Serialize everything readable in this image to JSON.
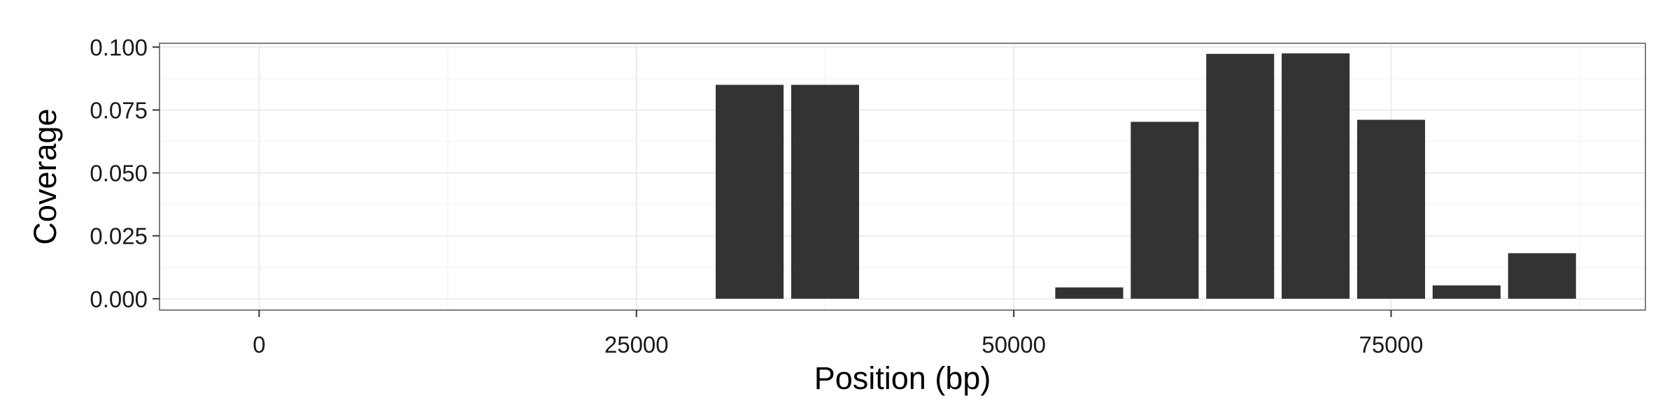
{
  "chart_data": {
    "type": "bar",
    "title": "",
    "xlabel": "Position (bp)",
    "ylabel": "Coverage",
    "xlim": [
      -6600,
      91850
    ],
    "ylim": [
      -0.0045,
      0.1015
    ],
    "x_ticks": [
      0,
      25000,
      50000,
      75000
    ],
    "x_tick_labels": [
      "0",
      "25000",
      "50000",
      "75000"
    ],
    "y_ticks": [
      0,
      0.025,
      0.05,
      0.075,
      0.1
    ],
    "y_tick_labels": [
      "0.000",
      "0.025",
      "0.050",
      "0.075",
      "0.100"
    ],
    "bar_width": 4500,
    "x": [
      32500,
      37500,
      55000,
      60000,
      65000,
      70000,
      75000,
      80000,
      85000
    ],
    "values": [
      0.085,
      0.085,
      0.0045,
      0.0703,
      0.0973,
      0.0975,
      0.0711,
      0.0053,
      0.0181
    ],
    "grid": true,
    "legend": "none",
    "colors": {
      "bar": "#333333",
      "panel_border": "#7f7f7f",
      "grid_major": "#ebebeb",
      "grid_minor": "#f5f5f5",
      "tick": "#333333"
    }
  }
}
